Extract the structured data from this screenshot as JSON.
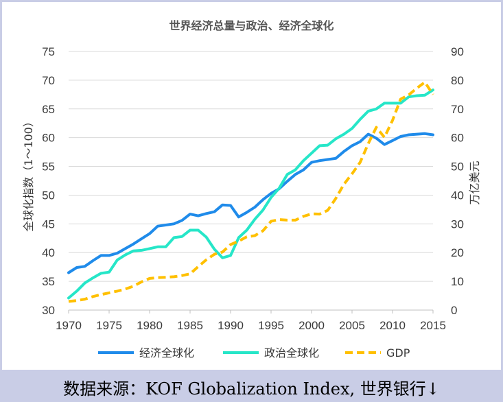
{
  "chart_data": {
    "type": "line",
    "title": "世界经济总量与政治、经济全球化",
    "ylabel": "全球化指数（1～100）",
    "y2label": "万亿美元",
    "xlim": [
      1970,
      2015
    ],
    "ylim": [
      30,
      75
    ],
    "y2lim": [
      0,
      90
    ],
    "xticks": [
      1970,
      1975,
      1980,
      1985,
      1990,
      1995,
      2000,
      2005,
      2010,
      2015
    ],
    "yticks": [
      30,
      35,
      40,
      45,
      50,
      55,
      60,
      65,
      70,
      75
    ],
    "y2ticks": [
      0,
      10,
      20,
      30,
      40,
      50,
      60,
      70,
      80,
      90
    ],
    "grid": true,
    "legend_position": "bottom",
    "x": [
      1970,
      1971,
      1972,
      1973,
      1974,
      1975,
      1976,
      1977,
      1978,
      1979,
      1980,
      1981,
      1982,
      1983,
      1984,
      1985,
      1986,
      1987,
      1988,
      1989,
      1990,
      1991,
      1992,
      1993,
      1994,
      1995,
      1996,
      1997,
      1998,
      1999,
      2000,
      2001,
      2002,
      2003,
      2004,
      2005,
      2006,
      2007,
      2008,
      2009,
      2010,
      2011,
      2012,
      2013,
      2014,
      2015
    ],
    "series": [
      {
        "name": "经济全球化",
        "axis": "left",
        "color": "#1f8bea",
        "style": "solid",
        "values": [
          36.5,
          37.4,
          37.6,
          38.6,
          39.5,
          39.5,
          39.9,
          40.7,
          41.5,
          42.4,
          43.3,
          44.6,
          44.8,
          45.0,
          45.6,
          46.7,
          46.4,
          46.8,
          47.1,
          48.3,
          48.2,
          46.2,
          47.0,
          47.9,
          49.2,
          50.3,
          51.1,
          52.4,
          53.6,
          54.4,
          55.7,
          56.0,
          56.2,
          56.4,
          57.6,
          58.6,
          59.3,
          60.6,
          59.9,
          58.8,
          59.5,
          60.2,
          60.5,
          60.6,
          60.7,
          60.5
        ]
      },
      {
        "name": "政治全球化",
        "axis": "left",
        "color": "#26e6c8",
        "style": "solid",
        "values": [
          32.1,
          33.3,
          34.7,
          35.6,
          36.4,
          36.6,
          38.7,
          39.6,
          40.3,
          40.4,
          40.7,
          41.0,
          41.0,
          42.6,
          42.8,
          43.9,
          43.9,
          42.7,
          40.6,
          39.1,
          39.5,
          42.6,
          43.9,
          45.8,
          47.4,
          49.6,
          51.2,
          53.6,
          54.4,
          56.0,
          57.3,
          58.6,
          58.7,
          59.8,
          60.6,
          61.6,
          63.2,
          64.6,
          65.0,
          66.0,
          66.0,
          66.0,
          67.1,
          67.3,
          67.4,
          68.3
        ]
      },
      {
        "name": "GDP",
        "axis": "right",
        "color": "#ffc000",
        "style": "dashed",
        "values": [
          3.0,
          3.3,
          3.8,
          4.7,
          5.4,
          6.0,
          6.6,
          7.3,
          8.3,
          9.8,
          11.0,
          11.3,
          11.4,
          11.6,
          12.0,
          12.6,
          15.1,
          17.5,
          19.4,
          20.2,
          22.8,
          24.0,
          25.5,
          25.9,
          27.6,
          30.9,
          31.5,
          31.3,
          31.3,
          32.6,
          33.5,
          33.4,
          34.7,
          38.9,
          43.8,
          47.4,
          51.4,
          57.9,
          63.6,
          60.1,
          66.0,
          73.4,
          74.9,
          77.2,
          79.3,
          75.0
        ]
      }
    ]
  },
  "source_caption": "数据来源：KOF Globalization Index, 世界银行↓"
}
